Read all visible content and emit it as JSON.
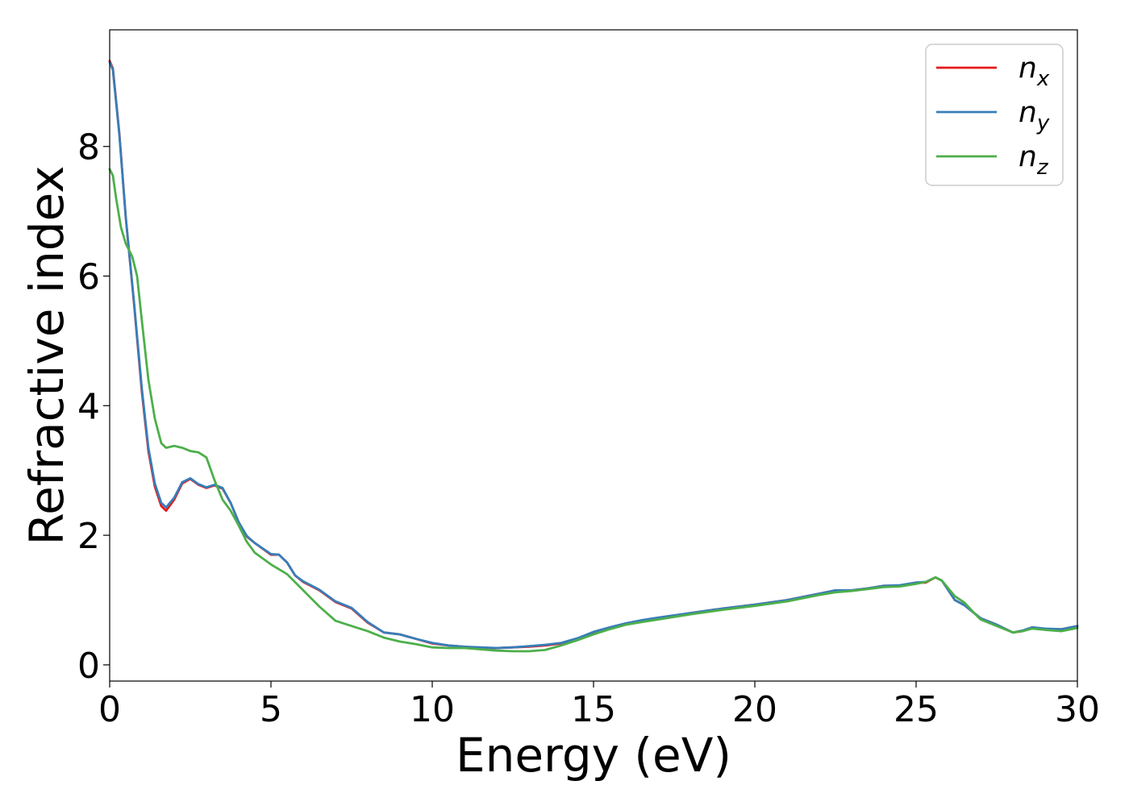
{
  "chart_data": {
    "type": "line",
    "xlabel": "Energy (eV)",
    "ylabel": "Refractive index",
    "xlim": [
      0,
      30
    ],
    "ylim": [
      -0.25,
      9.8
    ],
    "xticks": [
      0,
      5,
      10,
      15,
      20,
      25,
      30
    ],
    "xtick_labels": [
      "0",
      "5",
      "10",
      "15",
      "20",
      "25",
      "30"
    ],
    "yticks": [
      0,
      2,
      4,
      6,
      8
    ],
    "ytick_labels": [
      "0",
      "2",
      "4",
      "6",
      "8"
    ],
    "grid": false,
    "legend_position": "top-right",
    "series": [
      {
        "name": "n_x",
        "label_base": "n",
        "label_sub": "x",
        "color": "#e41a1c",
        "x": [
          0,
          0.1,
          0.3,
          0.5,
          0.75,
          1.0,
          1.2,
          1.4,
          1.6,
          1.75,
          2.0,
          2.25,
          2.5,
          2.75,
          3.0,
          3.25,
          3.5,
          3.75,
          4.0,
          4.25,
          4.5,
          5.0,
          5.25,
          5.5,
          5.75,
          6.0,
          6.5,
          7.0,
          7.5,
          8.0,
          8.5,
          9.0,
          9.5,
          10.0,
          10.5,
          11.0,
          11.5,
          12.0,
          12.5,
          13.0,
          13.5,
          14.0,
          14.5,
          15.0,
          15.5,
          16.0,
          16.5,
          17.0,
          18.0,
          19.0,
          20.0,
          21.0,
          21.5,
          22.0,
          22.5,
          23.0,
          23.5,
          24.0,
          24.5,
          25.0,
          25.3,
          25.6,
          25.8,
          26.0,
          26.2,
          26.5,
          26.8,
          27.0,
          27.5,
          28.0,
          28.3,
          28.6,
          29.0,
          29.5,
          30.0
        ],
        "values": [
          9.32,
          9.2,
          8.2,
          6.9,
          5.6,
          4.2,
          3.3,
          2.75,
          2.45,
          2.38,
          2.55,
          2.8,
          2.87,
          2.78,
          2.73,
          2.77,
          2.72,
          2.5,
          2.2,
          1.98,
          1.88,
          1.7,
          1.7,
          1.58,
          1.38,
          1.28,
          1.15,
          0.97,
          0.87,
          0.65,
          0.5,
          0.47,
          0.4,
          0.33,
          0.3,
          0.28,
          0.26,
          0.26,
          0.27,
          0.28,
          0.3,
          0.33,
          0.4,
          0.5,
          0.57,
          0.63,
          0.68,
          0.72,
          0.8,
          0.87,
          0.93,
          1.0,
          1.05,
          1.1,
          1.15,
          1.15,
          1.18,
          1.22,
          1.22,
          1.27,
          1.27,
          1.35,
          1.3,
          1.15,
          1.0,
          0.92,
          0.8,
          0.72,
          0.62,
          0.5,
          0.52,
          0.58,
          0.55,
          0.55,
          0.6
        ]
      },
      {
        "name": "n_y",
        "label_base": "n",
        "label_sub": "y",
        "color": "#377eb8",
        "x": [
          0,
          0.1,
          0.3,
          0.5,
          0.75,
          1.0,
          1.2,
          1.4,
          1.6,
          1.75,
          2.0,
          2.25,
          2.5,
          2.75,
          3.0,
          3.25,
          3.5,
          3.75,
          4.0,
          4.25,
          4.5,
          5.0,
          5.25,
          5.5,
          5.75,
          6.0,
          6.5,
          7.0,
          7.5,
          8.0,
          8.5,
          9.0,
          9.5,
          10.0,
          10.5,
          11.0,
          11.5,
          12.0,
          12.5,
          13.0,
          13.5,
          14.0,
          14.5,
          15.0,
          15.5,
          16.0,
          16.5,
          17.0,
          18.0,
          19.0,
          20.0,
          21.0,
          21.5,
          22.0,
          22.5,
          23.0,
          23.5,
          24.0,
          24.5,
          25.0,
          25.3,
          25.6,
          25.8,
          26.0,
          26.2,
          26.5,
          26.8,
          27.0,
          27.5,
          28.0,
          28.3,
          28.6,
          29.0,
          29.5,
          30.0
        ],
        "values": [
          9.3,
          9.18,
          8.18,
          6.9,
          5.62,
          4.25,
          3.35,
          2.8,
          2.5,
          2.43,
          2.58,
          2.82,
          2.88,
          2.79,
          2.74,
          2.78,
          2.73,
          2.5,
          2.2,
          1.99,
          1.88,
          1.71,
          1.7,
          1.58,
          1.38,
          1.29,
          1.16,
          0.98,
          0.88,
          0.66,
          0.5,
          0.47,
          0.4,
          0.34,
          0.3,
          0.28,
          0.27,
          0.26,
          0.27,
          0.29,
          0.31,
          0.34,
          0.41,
          0.51,
          0.58,
          0.64,
          0.69,
          0.73,
          0.8,
          0.87,
          0.93,
          1.0,
          1.05,
          1.1,
          1.15,
          1.15,
          1.18,
          1.22,
          1.23,
          1.27,
          1.28,
          1.35,
          1.3,
          1.15,
          1.0,
          0.92,
          0.8,
          0.72,
          0.62,
          0.5,
          0.53,
          0.58,
          0.56,
          0.55,
          0.6
        ]
      },
      {
        "name": "n_z",
        "label_base": "n",
        "label_sub": "z",
        "color": "#4daf4a",
        "x": [
          0,
          0.1,
          0.2,
          0.35,
          0.5,
          0.7,
          0.85,
          1.0,
          1.2,
          1.4,
          1.6,
          1.75,
          2.0,
          2.25,
          2.5,
          2.75,
          3.0,
          3.25,
          3.5,
          3.75,
          4.0,
          4.25,
          4.5,
          5.0,
          5.5,
          6.0,
          6.5,
          7.0,
          7.5,
          8.0,
          8.5,
          9.0,
          9.5,
          10.0,
          10.5,
          11.0,
          11.5,
          12.0,
          12.5,
          13.0,
          13.5,
          14.0,
          14.5,
          15.0,
          15.5,
          16.0,
          16.5,
          17.0,
          18.0,
          19.0,
          20.0,
          21.0,
          21.5,
          22.0,
          22.5,
          23.0,
          23.5,
          24.0,
          24.5,
          25.0,
          25.3,
          25.6,
          25.8,
          26.0,
          26.2,
          26.5,
          26.8,
          27.0,
          27.5,
          28.0,
          28.3,
          28.6,
          29.0,
          29.5,
          30.0
        ],
        "values": [
          7.65,
          7.55,
          7.2,
          6.75,
          6.5,
          6.3,
          6.0,
          5.3,
          4.4,
          3.8,
          3.42,
          3.35,
          3.38,
          3.35,
          3.3,
          3.28,
          3.2,
          2.85,
          2.55,
          2.38,
          2.15,
          1.9,
          1.73,
          1.55,
          1.4,
          1.15,
          0.9,
          0.68,
          0.6,
          0.52,
          0.42,
          0.36,
          0.32,
          0.27,
          0.26,
          0.26,
          0.24,
          0.22,
          0.21,
          0.21,
          0.23,
          0.3,
          0.38,
          0.47,
          0.55,
          0.62,
          0.66,
          0.7,
          0.78,
          0.85,
          0.91,
          0.98,
          1.03,
          1.08,
          1.12,
          1.14,
          1.17,
          1.2,
          1.21,
          1.25,
          1.28,
          1.35,
          1.3,
          1.18,
          1.06,
          0.96,
          0.8,
          0.7,
          0.6,
          0.5,
          0.52,
          0.56,
          0.54,
          0.52,
          0.57
        ]
      }
    ]
  }
}
